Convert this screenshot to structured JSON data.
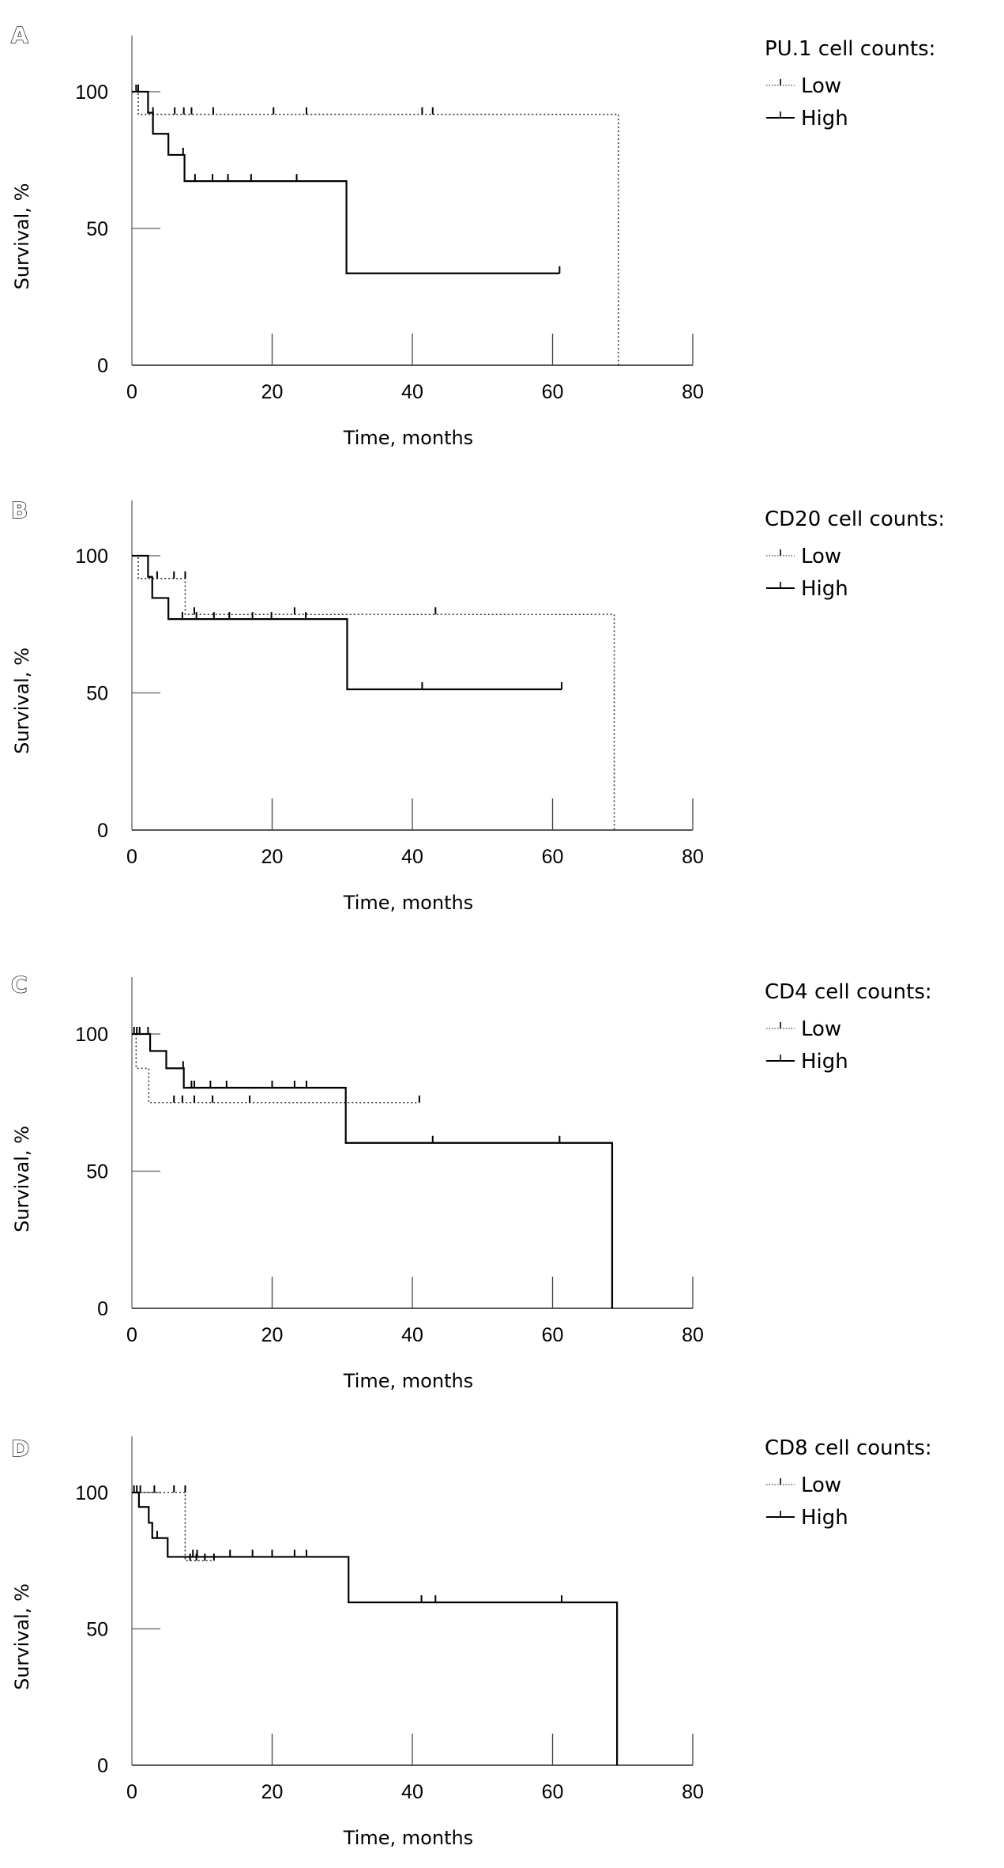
{
  "chart_data": [
    {
      "type": "line",
      "subtype": "kaplan-meier",
      "panel": "A",
      "xlabel": "Time, months",
      "ylabel": "Survival, %",
      "xlim": [
        0,
        80
      ],
      "ylim": [
        0,
        100
      ],
      "xticks": [
        0,
        20,
        40,
        60,
        80
      ],
      "yticks": [
        0,
        50,
        100
      ],
      "legend_title": "PU.1 cell counts:",
      "legend_position": "top-right",
      "series": [
        {
          "name": "Low",
          "style": "dotted",
          "steps": [
            [
              0,
              100
            ],
            [
              0.9,
              91.7
            ],
            [
              69.4,
              0
            ]
          ],
          "censored": [
            0.6,
            0.9,
            3.0,
            6.1,
            7.4,
            8.5,
            11.6,
            20.2,
            24.9,
            41.4,
            42.9
          ]
        },
        {
          "name": "High",
          "style": "solid",
          "steps": [
            [
              0,
              100
            ],
            [
              2.3,
              92.3
            ],
            [
              3.0,
              84.6
            ],
            [
              5.2,
              76.9
            ],
            [
              7.5,
              67.3
            ],
            [
              30.6,
              33.6
            ]
          ],
          "end": 61.0,
          "censored": [
            7.3,
            9.0,
            11.5,
            13.7,
            17.0,
            23.5,
            61.0
          ]
        }
      ]
    },
    {
      "type": "line",
      "subtype": "kaplan-meier",
      "panel": "B",
      "xlabel": "Time, months",
      "ylabel": "Survival, %",
      "xlim": [
        0,
        80
      ],
      "ylim": [
        0,
        100
      ],
      "xticks": [
        0,
        20,
        40,
        60,
        80
      ],
      "yticks": [
        0,
        50,
        100
      ],
      "legend_title": "CD20 cell counts:",
      "legend_position": "top-right",
      "series": [
        {
          "name": "Low",
          "style": "dotted",
          "steps": [
            [
              0,
              100
            ],
            [
              0.9,
              91.7
            ],
            [
              7.6,
              78.6
            ],
            [
              68.8,
              0
            ]
          ],
          "censored": [
            3.6,
            6.0,
            7.6,
            8.9,
            23.2,
            43.3
          ]
        },
        {
          "name": "High",
          "style": "solid",
          "steps": [
            [
              0,
              100
            ],
            [
              2.3,
              92.3
            ],
            [
              2.9,
              84.6
            ],
            [
              5.2,
              76.9
            ],
            [
              30.7,
              51.3
            ]
          ],
          "end": 61.3,
          "censored": [
            7.2,
            9.2,
            11.7,
            13.9,
            17.2,
            19.9,
            24.8,
            41.4,
            61.3
          ]
        }
      ]
    },
    {
      "type": "line",
      "subtype": "kaplan-meier",
      "panel": "C",
      "xlabel": "Time, months",
      "ylabel": "Survival, %",
      "xlim": [
        0,
        80
      ],
      "ylim": [
        0,
        100
      ],
      "xticks": [
        0,
        20,
        40,
        60,
        80
      ],
      "yticks": [
        0,
        50,
        100
      ],
      "legend_title": "CD4 cell counts:",
      "legend_position": "top-right",
      "series": [
        {
          "name": "Low",
          "style": "dotted",
          "steps": [
            [
              0,
              100
            ],
            [
              0.6,
              87.5
            ],
            [
              2.4,
              75.0
            ]
          ],
          "end": 41.0,
          "censored": [
            6.0,
            7.2,
            8.9,
            11.5,
            16.8,
            41.0
          ]
        },
        {
          "name": "High",
          "style": "solid",
          "steps": [
            [
              0,
              100
            ],
            [
              2.6,
              93.8
            ],
            [
              4.9,
              87.5
            ],
            [
              7.4,
              80.4
            ],
            [
              30.5,
              60.3
            ],
            [
              68.5,
              0
            ]
          ],
          "censored": [
            0.3,
            0.7,
            1.1,
            2.3,
            7.3,
            8.5,
            8.9,
            11.2,
            13.5,
            20.0,
            23.2,
            24.9,
            42.9,
            61.0
          ]
        }
      ]
    },
    {
      "type": "line",
      "subtype": "kaplan-meier",
      "panel": "D",
      "xlabel": "Time, months",
      "ylabel": "Survival, %",
      "xlim": [
        0,
        80
      ],
      "ylim": [
        0,
        100
      ],
      "xticks": [
        0,
        20,
        40,
        60,
        80
      ],
      "yticks": [
        0,
        50,
        100
      ],
      "legend_title": "CD8 cell counts:",
      "legend_position": "top-right",
      "series": [
        {
          "name": "Low",
          "style": "dotted",
          "steps": [
            [
              0,
              100
            ],
            [
              7.6,
              75.0
            ]
          ],
          "end": 11.7,
          "censored": [
            0.7,
            1.2,
            3.2,
            6.0,
            7.6,
            8.3,
            9.2,
            10.4,
            11.7
          ]
        },
        {
          "name": "High",
          "style": "solid",
          "steps": [
            [
              0,
              100
            ],
            [
              1.0,
              94.7
            ],
            [
              2.4,
              88.9
            ],
            [
              2.9,
              83.3
            ],
            [
              5.1,
              76.4
            ],
            [
              30.9,
              59.7
            ],
            [
              69.2,
              0
            ]
          ],
          "censored": [
            0.3,
            3.6,
            8.7,
            9.3,
            14.0,
            17.2,
            20.0,
            23.2,
            24.9,
            41.3,
            43.3,
            61.3
          ]
        }
      ]
    }
  ]
}
